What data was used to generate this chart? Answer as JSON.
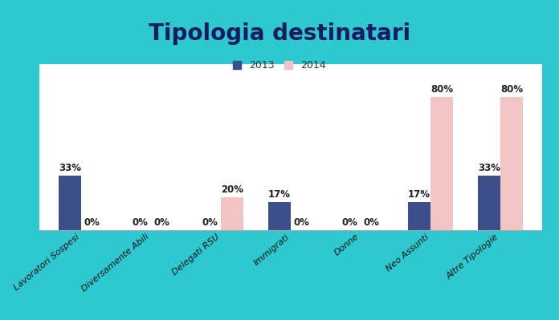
{
  "title": "Tipologia destinatari",
  "categories": [
    "Lavoratori Sospesi",
    "Diversamente Abili",
    "Delegati RSU",
    "Immigrati",
    "Donne",
    "Neo Assunti",
    "Altre Tipologie"
  ],
  "values_2013": [
    33,
    0,
    0,
    17,
    0,
    17,
    33
  ],
  "values_2014": [
    0,
    0,
    20,
    0,
    0,
    80,
    80
  ],
  "color_2013": "#3D4F8A",
  "color_2014": "#F2C4C4",
  "background_color": "#2EC8D0",
  "plot_bg_color": "#FFFFFF",
  "title_color": "#1a1a5e",
  "bar_width": 0.32,
  "ylim": [
    0,
    100
  ],
  "legend_2013": "2013",
  "legend_2014": "2014",
  "title_fontsize": 20,
  "label_fontsize": 9,
  "tick_fontsize": 8,
  "annot_fontsize": 8.5
}
